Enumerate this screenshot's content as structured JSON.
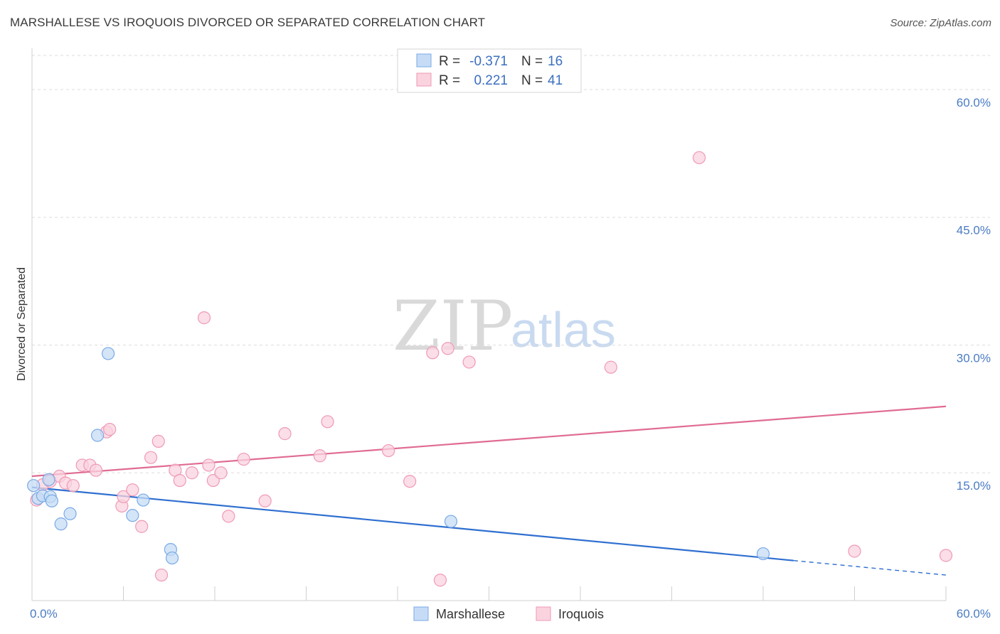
{
  "title": "MARSHALLESE VS IROQUOIS DIVORCED OR SEPARATED CORRELATION CHART",
  "source": "Source: ZipAtlas.com",
  "watermark": {
    "zip": "ZIP",
    "atlas": "atlas"
  },
  "colors": {
    "marshallese": "#7aaae6",
    "marshallese_fill": "#c6dcf6",
    "iroquois": "#ef9ab5",
    "iroquois_fill": "#fad3df",
    "marshallese_line": "#2f6fd0",
    "iroquois_line": "#e06b93",
    "tick_label": "#4a7cc4",
    "grid": "#dddddd"
  },
  "legend": {
    "rows": [
      {
        "r_label": "R =",
        "r_value": "-0.371",
        "n_label": "N =",
        "n_value": "16"
      },
      {
        "r_label": "R =",
        "r_value": "0.221",
        "n_label": "N =",
        "n_value": "41"
      }
    ]
  },
  "chart_data": {
    "type": "scatter",
    "title": "MARSHALLESE VS IROQUOIS DIVORCED OR SEPARATED CORRELATION CHART",
    "xlabel": "",
    "ylabel": "Divorced or Separated",
    "xlim": [
      0,
      60
    ],
    "ylim": [
      0,
      64
    ],
    "x_tick_labels": [
      "0.0%",
      "60.0%"
    ],
    "y_ticks": [
      15,
      30,
      45,
      60
    ],
    "y_tick_labels": [
      "15.0%",
      "30.0%",
      "45.0%",
      "60.0%"
    ],
    "grid": true,
    "legend_position": "top-center",
    "series": [
      {
        "name": "Marshallese",
        "points": [
          [
            0.1,
            13.5
          ],
          [
            0.4,
            12.0
          ],
          [
            0.7,
            12.3
          ],
          [
            1.1,
            14.2
          ],
          [
            1.2,
            12.2
          ],
          [
            1.3,
            11.7
          ],
          [
            1.9,
            9.0
          ],
          [
            2.5,
            10.2
          ],
          [
            5.0,
            29.0
          ],
          [
            4.3,
            19.4
          ],
          [
            6.6,
            10.0
          ],
          [
            7.3,
            11.8
          ],
          [
            9.1,
            6.0
          ],
          [
            9.2,
            5.0
          ],
          [
            27.5,
            9.3
          ],
          [
            48.0,
            5.5
          ]
        ],
        "trend": {
          "x": [
            0,
            50
          ],
          "y": [
            13.3,
            4.7
          ],
          "dashed_to": [
            60,
            3.0
          ]
        }
      },
      {
        "name": "Iroquois",
        "points": [
          [
            0.3,
            11.8
          ],
          [
            0.7,
            13.6
          ],
          [
            1.2,
            14.0
          ],
          [
            1.8,
            14.6
          ],
          [
            2.2,
            13.8
          ],
          [
            2.7,
            13.5
          ],
          [
            3.3,
            15.9
          ],
          [
            3.8,
            15.9
          ],
          [
            4.2,
            15.3
          ],
          [
            4.9,
            19.8
          ],
          [
            5.1,
            20.1
          ],
          [
            5.9,
            11.1
          ],
          [
            6.0,
            12.2
          ],
          [
            6.6,
            13.0
          ],
          [
            7.2,
            8.7
          ],
          [
            7.8,
            16.8
          ],
          [
            8.3,
            18.7
          ],
          [
            8.5,
            3.0
          ],
          [
            9.4,
            15.3
          ],
          [
            9.7,
            14.1
          ],
          [
            10.5,
            15.0
          ],
          [
            11.3,
            33.2
          ],
          [
            11.6,
            15.9
          ],
          [
            11.9,
            14.1
          ],
          [
            12.4,
            15.0
          ],
          [
            12.9,
            9.9
          ],
          [
            13.9,
            16.6
          ],
          [
            15.3,
            11.7
          ],
          [
            16.6,
            19.6
          ],
          [
            18.9,
            17.0
          ],
          [
            19.4,
            21.0
          ],
          [
            23.4,
            17.6
          ],
          [
            24.8,
            14.0
          ],
          [
            26.3,
            29.1
          ],
          [
            26.8,
            2.4
          ],
          [
            27.3,
            29.6
          ],
          [
            28.7,
            28.0
          ],
          [
            38.0,
            27.4
          ],
          [
            43.8,
            52.0
          ],
          [
            54.0,
            5.8
          ],
          [
            60.0,
            5.3
          ]
        ],
        "trend": {
          "x": [
            0,
            60
          ],
          "y": [
            14.6,
            22.8
          ]
        }
      }
    ]
  },
  "bottom_legend": {
    "items": [
      "Marshallese",
      "Iroquois"
    ]
  }
}
